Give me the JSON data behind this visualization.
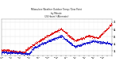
{
  "title": "Milwaukee Weather Outdoor Temp / Dew Point\nby Minute\n(24 Hours) (Alternate)",
  "bg_color": "#ffffff",
  "plot_bg_color": "#ffffff",
  "grid_color": "#dddddd",
  "temp_color": "#dd0000",
  "dew_color": "#0000cc",
  "ylim": [
    28,
    78
  ],
  "yticks": [
    34,
    44,
    54,
    64,
    74
  ],
  "xlim": [
    0,
    1440
  ],
  "n_points": 1440,
  "dot_size": 0.3,
  "dot_step": 2
}
